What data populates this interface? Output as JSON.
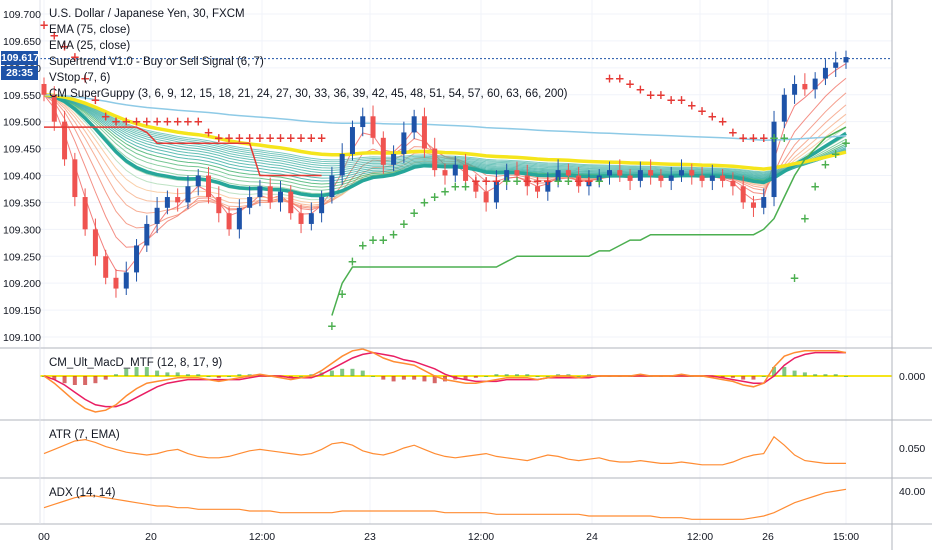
{
  "legend": {
    "symbol": "U.S. Dollar / Japanese Yen, 30, FXCM",
    "indicators": [
      "EMA (75, close)",
      "EMA (25, close)",
      "Supertrend V1.0 - Buy or Sell Signal (6, 7)",
      "VStop (7, 6)",
      "CM SuperGuppy (3, 6, 9, 12, 15, 18, 21, 24, 27, 30, 33, 36, 39, 42, 45, 48, 51, 54, 57, 60, 63, 66, 200)"
    ]
  },
  "badges": {
    "last_price": "109.617",
    "countdown": "28:35"
  },
  "panes": {
    "macd_label": "CM_Ult_MacD_MTF (12, 8, 17, 9)",
    "atr_label": "ATR (7, EMA)",
    "adx_label": "ADX (14, 14)"
  },
  "colors": {
    "up": "#1e53a8",
    "down": "#ef5350",
    "supertrend_up": "#4caf50",
    "supertrend_down": "#e53935",
    "ema_yellow": "#f5e51b",
    "ema_teal": "#26a69a",
    "ema_lightblue": "#8ecae6",
    "line_orange": "#ff8c33",
    "macd_pink": "#e91e63"
  },
  "chart_data": [
    {
      "type": "candlestick",
      "title": "U.S. Dollar / Japanese Yen, 30, FXCM",
      "y_ticks": [
        "109.700",
        "109.650",
        "109.600",
        "109.550",
        "109.500",
        "109.450",
        "109.400",
        "109.350",
        "109.300",
        "109.250",
        "109.200",
        "109.150",
        "109.100"
      ],
      "ylim": [
        109.085,
        109.715
      ],
      "x_ticks": [
        "00",
        "20",
        "12:00",
        "23",
        "12:00",
        "24",
        "12:00",
        "26",
        "15:00"
      ],
      "last_price": 109.617,
      "closes": [
        109.55,
        109.5,
        109.43,
        109.36,
        109.3,
        109.25,
        109.21,
        109.19,
        109.22,
        109.27,
        109.31,
        109.34,
        109.36,
        109.35,
        109.38,
        109.4,
        109.36,
        109.33,
        109.3,
        109.34,
        109.36,
        109.38,
        109.35,
        109.37,
        109.33,
        109.31,
        109.33,
        109.36,
        109.4,
        109.44,
        109.49,
        109.51,
        109.47,
        109.42,
        109.44,
        109.48,
        109.51,
        109.45,
        109.41,
        109.4,
        109.42,
        109.39,
        109.37,
        109.35,
        109.39,
        109.41,
        109.4,
        109.38,
        109.37,
        109.39,
        109.41,
        109.4,
        109.38,
        109.39,
        109.4,
        109.41,
        109.4,
        109.39,
        109.41,
        109.4,
        109.39,
        109.4,
        109.41,
        109.4,
        109.39,
        109.4,
        109.39,
        109.38,
        109.35,
        109.34,
        109.36,
        109.5,
        109.55,
        109.57,
        109.56,
        109.58,
        109.6,
        109.61,
        109.62
      ],
      "series": [
        {
          "name": "Supertrend V1.0 - Buy or Sell Signal (6, 7)",
          "values": [
            109.68,
            109.66,
            109.64,
            109.62,
            109.58,
            109.54,
            109.51,
            109.5,
            109.5,
            109.5,
            109.5,
            109.5,
            109.5,
            109.5,
            109.5,
            109.5,
            109.48,
            109.47,
            109.47,
            109.47,
            109.47,
            109.47,
            109.47,
            109.47,
            109.47,
            109.47,
            109.47,
            109.47,
            109.12,
            109.18,
            109.24,
            109.27,
            109.28,
            109.28,
            109.29,
            109.31,
            109.33,
            109.35,
            109.36,
            109.37,
            109.38,
            109.38,
            109.39,
            109.39,
            109.39,
            109.39,
            109.39,
            109.39,
            109.39,
            109.39,
            109.39,
            109.39,
            109.39,
            109.39,
            109.39,
            109.58,
            109.58,
            109.57,
            109.56,
            109.55,
            109.55,
            109.54,
            109.54,
            109.53,
            109.52,
            109.51,
            109.5,
            109.48,
            109.47,
            109.47,
            109.47,
            109.47,
            109.47,
            109.21,
            109.32,
            109.38,
            109.42,
            109.44,
            109.46
          ]
        },
        {
          "name": "VStop (7, 6)",
          "values": [
            109.49,
            109.49,
            109.49,
            109.49,
            109.49,
            109.49,
            109.49,
            109.49,
            109.49,
            109.49,
            109.48,
            109.46,
            109.46,
            109.46,
            109.46,
            109.46,
            109.46,
            109.46,
            109.46,
            109.46,
            109.46,
            109.4,
            109.4,
            109.4,
            109.4,
            109.4,
            109.4,
            109.4,
            109.14,
            109.2,
            109.23,
            109.23,
            109.23,
            109.23,
            109.23,
            109.23,
            109.23,
            109.23,
            109.23,
            109.23,
            109.23,
            109.23,
            109.23,
            109.23,
            109.23,
            109.24,
            109.25,
            109.25,
            109.25,
            109.25,
            109.25,
            109.25,
            109.25,
            109.25,
            109.26,
            109.26,
            109.27,
            109.28,
            109.28,
            109.29,
            109.29,
            109.29,
            109.29,
            109.29,
            109.29,
            109.29,
            109.29,
            109.29,
            109.29,
            109.29,
            109.3,
            109.32,
            109.36,
            109.4,
            109.43,
            109.45,
            109.47,
            109.48,
            109.49
          ]
        }
      ]
    },
    {
      "type": "line",
      "title": "CM_Ult_MacD_MTF (12, 8, 17, 9)",
      "y_ticks": [
        "0.000"
      ],
      "series": [
        {
          "name": "MACD",
          "values": [
            0.0,
            -0.04,
            -0.09,
            -0.14,
            -0.18,
            -0.2,
            -0.19,
            -0.16,
            -0.11,
            -0.07,
            -0.04,
            -0.03,
            -0.02,
            -0.01,
            -0.01,
            -0.01,
            -0.02,
            -0.03,
            -0.02,
            -0.01,
            0.0,
            0.01,
            0.0,
            -0.01,
            -0.02,
            -0.01,
            0.0,
            0.03,
            0.07,
            0.11,
            0.14,
            0.15,
            0.13,
            0.1,
            0.08,
            0.07,
            0.06,
            0.03,
            0.0,
            -0.02,
            -0.03,
            -0.04,
            -0.04,
            -0.03,
            -0.02,
            -0.01,
            -0.01,
            -0.01,
            -0.02,
            -0.01,
            0.0,
            0.0,
            -0.01,
            0.0,
            0.0,
            0.0,
            0.0,
            0.0,
            0.01,
            0.0,
            0.0,
            0.0,
            0.01,
            0.0,
            0.0,
            -0.01,
            -0.02,
            -0.03,
            -0.05,
            -0.06,
            -0.04,
            0.05,
            0.11,
            0.13,
            0.14,
            0.14,
            0.14,
            0.14,
            0.13
          ]
        },
        {
          "name": "Signal",
          "values": [
            0.0,
            -0.02,
            -0.05,
            -0.09,
            -0.13,
            -0.16,
            -0.17,
            -0.17,
            -0.15,
            -0.12,
            -0.09,
            -0.06,
            -0.04,
            -0.03,
            -0.02,
            -0.02,
            -0.02,
            -0.02,
            -0.02,
            -0.02,
            -0.01,
            0.0,
            0.0,
            0.0,
            -0.01,
            -0.01,
            -0.01,
            0.01,
            0.04,
            0.07,
            0.1,
            0.12,
            0.13,
            0.12,
            0.11,
            0.09,
            0.08,
            0.06,
            0.04,
            0.01,
            -0.01,
            -0.02,
            -0.03,
            -0.03,
            -0.03,
            -0.02,
            -0.02,
            -0.02,
            -0.02,
            -0.01,
            -0.01,
            -0.01,
            -0.01,
            -0.01,
            0.0,
            0.0,
            0.0,
            0.0,
            0.0,
            0.0,
            0.0,
            0.0,
            0.0,
            0.0,
            0.0,
            0.0,
            -0.01,
            -0.02,
            -0.03,
            -0.04,
            -0.04,
            0.0,
            0.06,
            0.1,
            0.12,
            0.13,
            0.13,
            0.13,
            0.13
          ]
        }
      ]
    },
    {
      "type": "line",
      "title": "ATR (7, EMA)",
      "y_ticks": [
        "0.050"
      ],
      "series": [
        {
          "name": "ATR (7, EMA)",
          "values": [
            0.046,
            0.049,
            0.052,
            0.055,
            0.056,
            0.054,
            0.051,
            0.049,
            0.047,
            0.046,
            0.045,
            0.046,
            0.048,
            0.049,
            0.046,
            0.044,
            0.043,
            0.043,
            0.044,
            0.046,
            0.048,
            0.049,
            0.048,
            0.047,
            0.046,
            0.045,
            0.046,
            0.049,
            0.053,
            0.054,
            0.052,
            0.048,
            0.046,
            0.045,
            0.047,
            0.05,
            0.052,
            0.049,
            0.046,
            0.044,
            0.043,
            0.044,
            0.045,
            0.046,
            0.044,
            0.043,
            0.042,
            0.041,
            0.043,
            0.045,
            0.044,
            0.042,
            0.041,
            0.042,
            0.043,
            0.041,
            0.04,
            0.04,
            0.041,
            0.04,
            0.039,
            0.039,
            0.04,
            0.039,
            0.038,
            0.038,
            0.038,
            0.04,
            0.043,
            0.045,
            0.046,
            0.058,
            0.052,
            0.045,
            0.041,
            0.04,
            0.039,
            0.039,
            0.039
          ]
        }
      ]
    },
    {
      "type": "line",
      "title": "ADX (14, 14)",
      "y_ticks": [
        "40.00"
      ],
      "series": [
        {
          "name": "ADX (14, 14)",
          "values": [
            30,
            32,
            34,
            36,
            37,
            37,
            36,
            35,
            34,
            33,
            32,
            31,
            31,
            30,
            30,
            29,
            29,
            29,
            29,
            29,
            28,
            28,
            28,
            27,
            27,
            27,
            27,
            27,
            27,
            28,
            28,
            28,
            28,
            28,
            28,
            28,
            28,
            28,
            28,
            27,
            27,
            27,
            27,
            27,
            26,
            26,
            26,
            26,
            26,
            26,
            26,
            26,
            26,
            25,
            25,
            25,
            25,
            25,
            25,
            25,
            24,
            24,
            24,
            23,
            23,
            23,
            23,
            23,
            23,
            24,
            25,
            27,
            30,
            33,
            35,
            37,
            39,
            40,
            41
          ]
        }
      ]
    }
  ]
}
